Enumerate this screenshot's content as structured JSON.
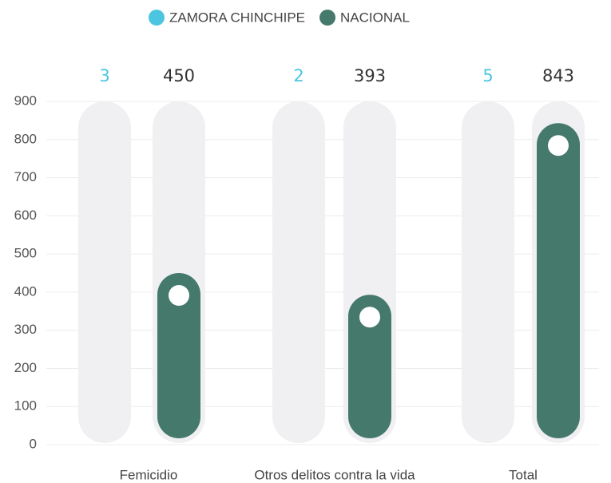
{
  "chart_data": {
    "type": "bar",
    "categories": [
      "Femicidio",
      "Otros delitos contra la vida",
      "Total"
    ],
    "series": [
      {
        "name": "ZAMORA CHINCHIPE",
        "color": "#4cc6e0",
        "values": [
          3,
          2,
          5
        ]
      },
      {
        "name": "NACIONAL",
        "color": "#44796b",
        "values": [
          450,
          393,
          843
        ]
      }
    ],
    "ylim": [
      0,
      900
    ],
    "yticks": [
      0,
      100,
      200,
      300,
      400,
      500,
      600,
      700,
      800,
      900
    ],
    "grid": true,
    "legend": "top"
  }
}
